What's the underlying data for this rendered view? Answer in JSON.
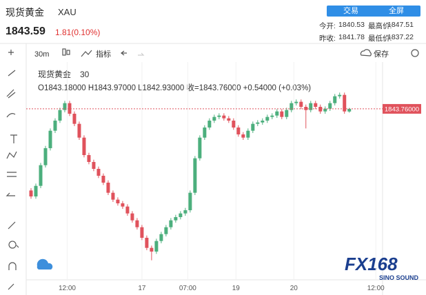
{
  "header": {
    "title": "现货黄金",
    "symbol": "XAU",
    "price": "1843.59",
    "change": "1.81(0.10%)",
    "buttons": [
      "交易",
      "全屏"
    ],
    "stats": [
      [
        "今开:",
        "1840.53"
      ],
      [
        "最高价:",
        "1847.51"
      ],
      [
        "昨收:",
        "1841.78"
      ],
      [
        "最低价:",
        "1837.22"
      ]
    ]
  },
  "toolbar": {
    "interval": "30m",
    "indicators": "指标",
    "save": "保存"
  },
  "legend": {
    "name": "现货黄金",
    "interval": "30",
    "ohlc": "O1843.18000 H1843.97000 L1842.93000 收=1843.76000 +0.54000 (+0.03%)"
  },
  "watermark": {
    "brand": "FX168",
    "sub": "SINO SOUND"
  },
  "chart_data": {
    "type": "candlestick",
    "up_color": "#4caf7d",
    "down_color": "#e0525c",
    "open": [
      1826.0,
      1824.7,
      1827.0,
      1831.5,
      1835.2,
      1839.0,
      1841.2,
      1843.5,
      1845.0,
      1842.7,
      1840.5,
      1837.5,
      1833.7,
      1832.2,
      1830.7,
      1829.2,
      1827.7,
      1825.5,
      1824.0,
      1823.2,
      1822.5,
      1821.0,
      1819.5,
      1818.0,
      1815.7,
      1813.5,
      1812.7,
      1815.0,
      1816.5,
      1818.0,
      1819.5,
      1820.2,
      1821.0,
      1821.7,
      1825.5,
      1833.0,
      1837.5,
      1839.7,
      1841.2,
      1842.0,
      1842.3,
      1841.7,
      1841.2,
      1839.7,
      1838.2,
      1837.5,
      1839.0,
      1840.5,
      1840.8,
      1841.2,
      1842.0,
      1842.3,
      1843.2,
      1842.0,
      1843.5,
      1845.0,
      1845.3,
      1844.2,
      1843.5,
      1845.0,
      1844.2,
      1843.2,
      1843.8,
      1845.0,
      1846.5,
      1846.8,
      1843.18
    ],
    "high": [
      1826.5,
      1827.5,
      1832.0,
      1835.7,
      1839.5,
      1841.7,
      1844.0,
      1845.5,
      1845.5,
      1843.2,
      1841.0,
      1838.0,
      1834.2,
      1832.7,
      1831.2,
      1829.7,
      1828.2,
      1826.0,
      1824.5,
      1823.7,
      1823.0,
      1821.5,
      1820.0,
      1818.5,
      1816.2,
      1814.0,
      1815.5,
      1817.0,
      1818.5,
      1820.0,
      1820.7,
      1821.5,
      1822.2,
      1826.0,
      1833.5,
      1838.0,
      1840.2,
      1841.7,
      1842.5,
      1842.8,
      1842.8,
      1842.2,
      1841.7,
      1840.2,
      1838.7,
      1839.5,
      1841.0,
      1841.3,
      1841.7,
      1842.5,
      1842.8,
      1843.7,
      1843.7,
      1844.0,
      1845.5,
      1845.8,
      1845.8,
      1844.7,
      1845.5,
      1845.5,
      1844.7,
      1844.3,
      1845.5,
      1847.0,
      1847.3,
      1847.3,
      1843.97
    ],
    "low": [
      1824.2,
      1824.2,
      1826.5,
      1831.0,
      1834.7,
      1838.5,
      1840.7,
      1843.0,
      1842.2,
      1840.0,
      1837.0,
      1833.2,
      1831.7,
      1830.2,
      1828.7,
      1827.2,
      1825.0,
      1823.5,
      1822.7,
      1822.0,
      1820.5,
      1819.0,
      1817.5,
      1815.2,
      1813.0,
      1810.8,
      1812.2,
      1814.5,
      1816.0,
      1817.5,
      1819.0,
      1819.7,
      1820.5,
      1821.2,
      1825.0,
      1832.5,
      1837.0,
      1839.2,
      1840.7,
      1841.5,
      1841.2,
      1840.7,
      1839.2,
      1837.7,
      1837.0,
      1837.0,
      1838.5,
      1840.0,
      1840.3,
      1840.7,
      1841.5,
      1841.8,
      1841.5,
      1841.5,
      1843.0,
      1844.5,
      1843.7,
      1839.5,
      1843.0,
      1843.7,
      1842.7,
      1842.7,
      1843.3,
      1844.5,
      1846.0,
      1842.7,
      1842.93
    ],
    "close": [
      1824.7,
      1827.0,
      1831.5,
      1835.2,
      1839.0,
      1841.2,
      1843.5,
      1845.0,
      1842.7,
      1840.5,
      1837.5,
      1833.7,
      1832.2,
      1830.7,
      1829.2,
      1827.7,
      1825.5,
      1824.0,
      1823.2,
      1822.5,
      1821.0,
      1819.5,
      1818.0,
      1815.7,
      1813.5,
      1812.7,
      1815.0,
      1816.5,
      1818.0,
      1819.5,
      1820.2,
      1821.0,
      1821.7,
      1825.5,
      1833.0,
      1837.5,
      1839.7,
      1841.2,
      1842.0,
      1842.3,
      1841.7,
      1841.2,
      1839.7,
      1838.2,
      1837.5,
      1839.0,
      1840.5,
      1840.8,
      1841.2,
      1842.0,
      1842.3,
      1843.2,
      1842.0,
      1843.5,
      1845.0,
      1845.3,
      1844.2,
      1843.5,
      1845.0,
      1844.2,
      1843.2,
      1843.8,
      1845.0,
      1846.5,
      1846.8,
      1843.2,
      1843.76
    ],
    "last_price": {
      "value": 1843.76,
      "label": "1843.76000"
    },
    "xlim": [
      -1,
      72.9
    ],
    "ylim": [
      1806.7,
      1853.2
    ],
    "xticks": [
      {
        "value": 7.5,
        "label": "12:00"
      },
      {
        "value": 23,
        "label": "17"
      },
      {
        "value": 32.5,
        "label": "07:00"
      },
      {
        "value": 42.5,
        "label": "19"
      },
      {
        "value": 54.5,
        "label": "20"
      },
      {
        "value": 71.5,
        "label": "12:00"
      }
    ]
  }
}
